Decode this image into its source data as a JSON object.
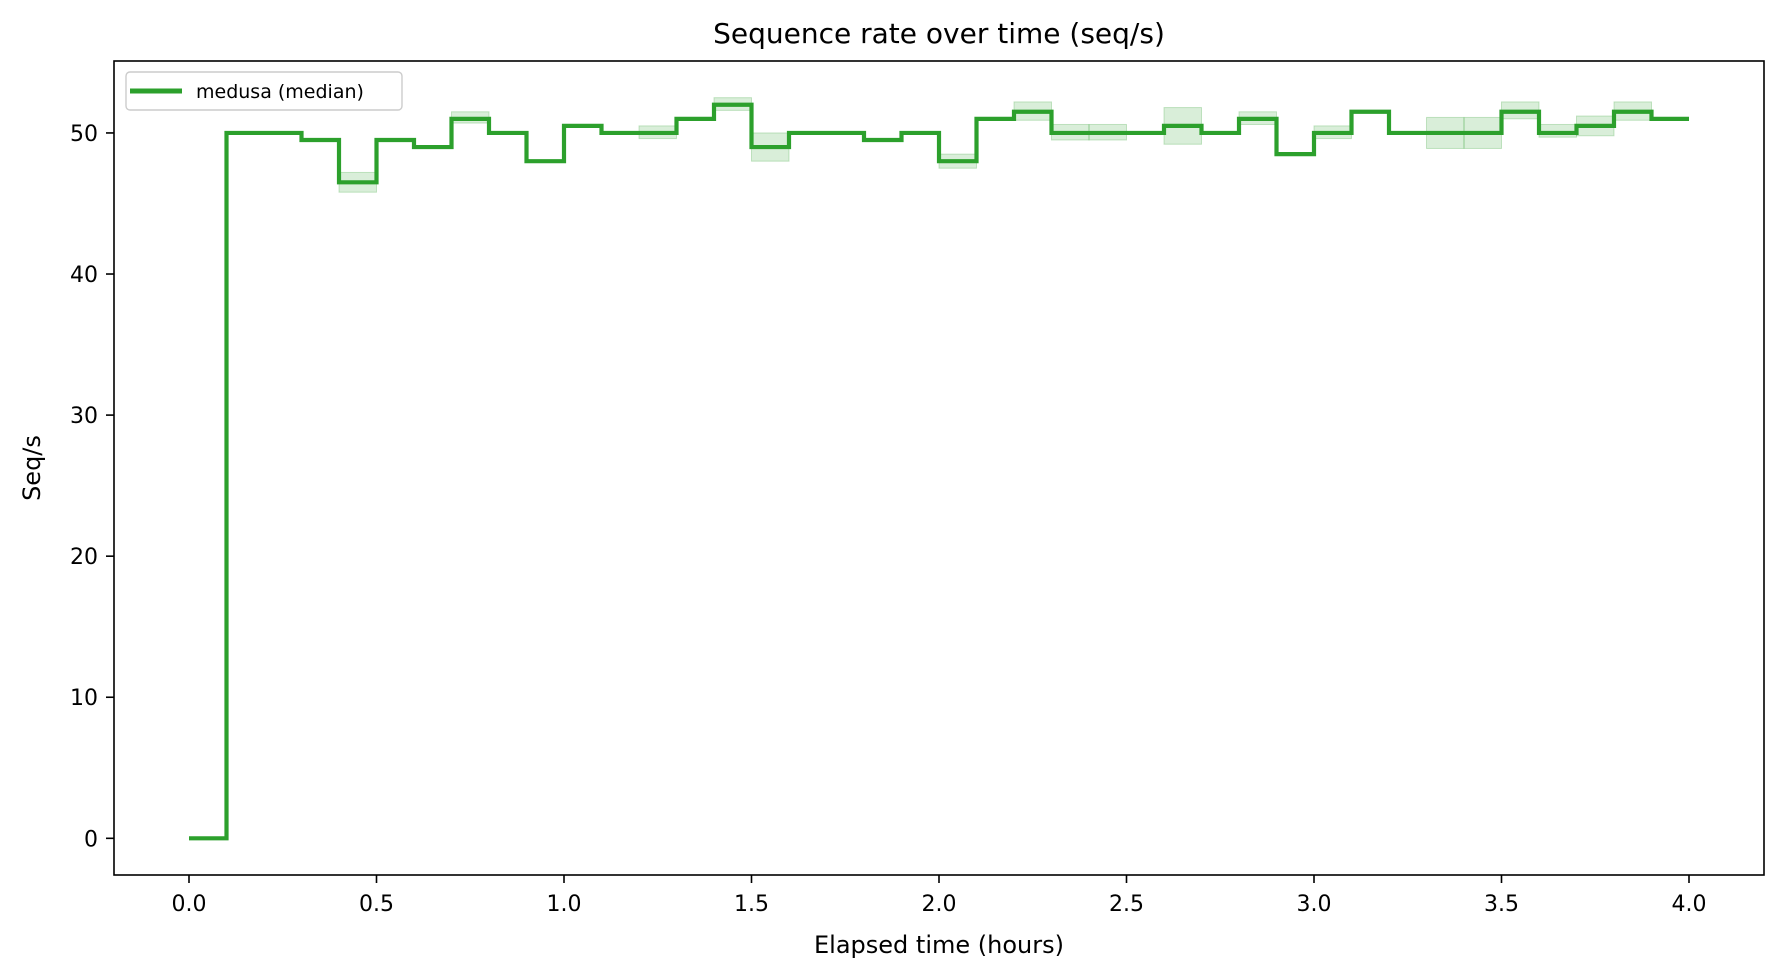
{
  "chart_data": {
    "type": "line",
    "title": "Sequence rate over time (seq/s)",
    "xlabel": "Elapsed time (hours)",
    "ylabel": "Seq/s",
    "xlim": [
      -0.2,
      4.2
    ],
    "ylim": [
      -2.6,
      55.1
    ],
    "x_ticks": [
      0.0,
      0.5,
      1.0,
      1.5,
      2.0,
      2.5,
      3.0,
      3.5,
      4.0
    ],
    "x_tick_labels": [
      "0.0",
      "0.5",
      "1.0",
      "1.5",
      "2.0",
      "2.5",
      "3.0",
      "3.5",
      "4.0"
    ],
    "y_ticks": [
      0,
      10,
      20,
      30,
      40,
      50
    ],
    "y_tick_labels": [
      "0",
      "10",
      "20",
      "30",
      "40",
      "50"
    ],
    "grid": false,
    "legend_position": "top-left",
    "step": "post",
    "series": [
      {
        "name": "medusa (median)",
        "color": "#2ca02c",
        "x": [
          0.0,
          0.1,
          0.2,
          0.3,
          0.4,
          0.5,
          0.6,
          0.7,
          0.8,
          0.9,
          1.0,
          1.1,
          1.2,
          1.3,
          1.4,
          1.5,
          1.6,
          1.7,
          1.8,
          1.9,
          2.0,
          2.1,
          2.2,
          2.3,
          2.4,
          2.5,
          2.6,
          2.7,
          2.8,
          2.9,
          3.0,
          3.1,
          3.2,
          3.3,
          3.4,
          3.5,
          3.6,
          3.7,
          3.8,
          3.9,
          4.0
        ],
        "values": [
          0,
          50,
          50,
          49.5,
          46.5,
          49.5,
          49,
          51,
          50,
          48,
          50.5,
          50,
          50,
          51,
          52,
          49,
          50,
          50,
          49.5,
          50,
          48,
          51,
          51.5,
          50,
          50,
          50,
          50.5,
          50,
          51,
          48.5,
          50,
          51.5,
          50,
          50,
          50,
          51.5,
          50,
          50.5,
          51.5,
          51,
          51
        ],
        "band_low": [
          0,
          50,
          50,
          49.5,
          45.8,
          49.5,
          49,
          50.7,
          50,
          48,
          50.5,
          50,
          49.6,
          51,
          51.6,
          48.0,
          50,
          50,
          49.5,
          50,
          47.5,
          51,
          50.9,
          49.5,
          49.5,
          50,
          49.2,
          50,
          50.6,
          48.5,
          49.6,
          51.5,
          50,
          48.9,
          48.9,
          51.0,
          49.7,
          49.8,
          50.9,
          51,
          51
        ],
        "band_high": [
          0,
          50,
          50,
          49.5,
          47.2,
          49.5,
          49,
          51.5,
          50,
          48,
          50.5,
          50,
          50.5,
          51,
          52.5,
          50.0,
          50,
          50,
          49.5,
          50,
          48.5,
          51,
          52.2,
          50.6,
          50.6,
          50,
          51.8,
          50,
          51.5,
          48.5,
          50.5,
          51.5,
          50,
          51.1,
          51.1,
          52.2,
          50.6,
          51.2,
          52.2,
          51,
          51
        ]
      }
    ]
  }
}
